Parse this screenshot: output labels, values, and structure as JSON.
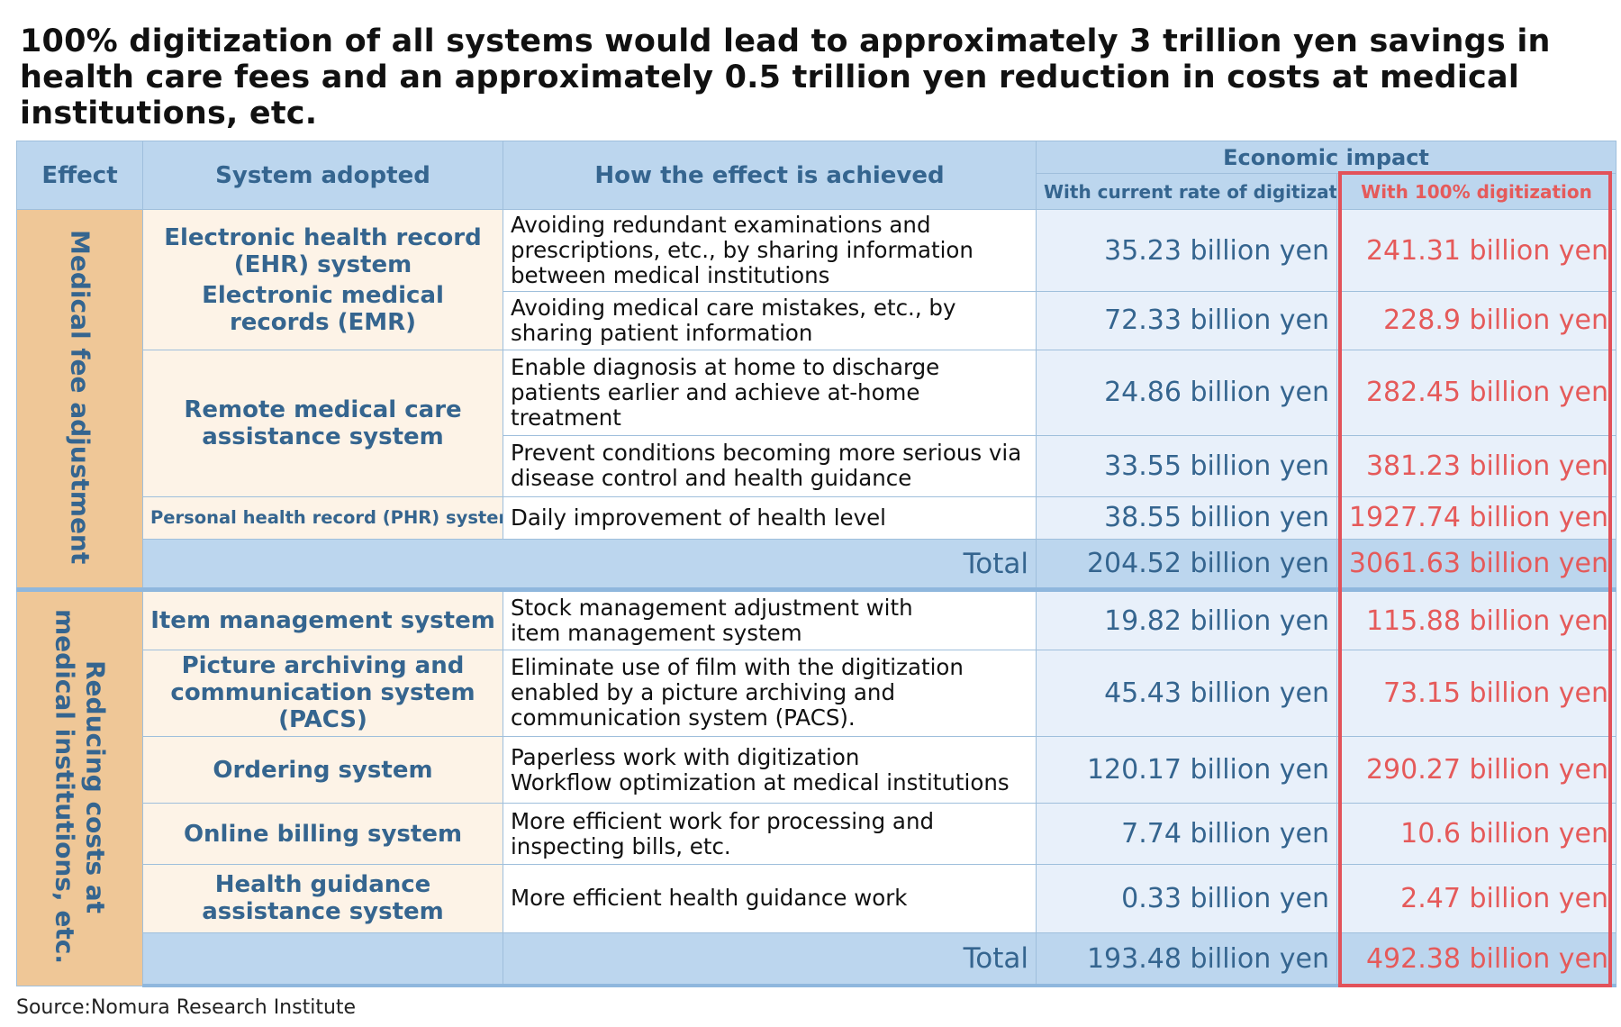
{
  "title": "100% digitization of all systems would lead to approximately 3 trillion yen savings in health care fees and an approximately 0.5 trillion yen reduction in costs at medical institutions, etc.",
  "header": {
    "effect": "Effect",
    "system": "System adopted",
    "how": "How the effect is achieved",
    "impact": "Economic impact",
    "current": "With current rate of digitization",
    "full": "With 100% digitization"
  },
  "highlight_color": "#e2525a",
  "sections": [
    {
      "effect": "Medical fee adjustment",
      "rows": [
        {
          "system_lines": [
            "Electronic health record (EHR) system",
            "Electronic medical records (EMR)"
          ],
          "how": "Avoiding redundant examinations and\nprescriptions, etc., by sharing information\nbetween medical institutions",
          "current": "35.23 billion yen",
          "full": "241.31 billion yen"
        },
        {
          "how": "Avoiding medical care mistakes, etc., by\nsharing patient information",
          "current": "72.33 billion yen",
          "full": "228.9 billion yen"
        },
        {
          "system_lines": [
            "Remote medical care assistance system"
          ],
          "how": "Enable diagnosis at home to discharge\npatients earlier and achieve at-home\ntreatment",
          "current": "24.86 billion yen",
          "full": "282.45 billion yen"
        },
        {
          "how": "Prevent conditions becoming more serious via\ndisease control and health guidance",
          "current": "33.55 billion yen",
          "full": "381.23 billion yen"
        },
        {
          "system_lines": [
            "Personal health record (PHR) system"
          ],
          "how": "Daily improvement of health level",
          "current": "38.55 billion yen",
          "full": "1927.74 billion yen"
        }
      ],
      "total_label": "Total",
      "total_current": "204.52 billion yen",
      "total_full": "3061.63 billion yen"
    },
    {
      "effect": "Reducing costs at\nmedical institutions, etc.",
      "rows": [
        {
          "system_lines": [
            "Item management system"
          ],
          "how": "Stock management adjustment with\nitem management system",
          "current": "19.82 billion yen",
          "full": "115.88 billion yen"
        },
        {
          "system_lines": [
            "Picture archiving and communication system (PACS)"
          ],
          "how": "Eliminate use of film with the digitization\nenabled by a picture archiving and\ncommunication system (PACS).",
          "current": "45.43 billion yen",
          "full": "73.15 billion yen"
        },
        {
          "system_lines": [
            "Ordering system"
          ],
          "how": "Paperless work with digitization\nWorkflow optimization at medical institutions",
          "current": "120.17 billion yen",
          "full": "290.27 billion yen"
        },
        {
          "system_lines": [
            "Online billing system"
          ],
          "how": "More efficient work for processing and\ninspecting bills, etc.",
          "current": "7.74 billion yen",
          "full": "10.6 billion yen"
        },
        {
          "system_lines": [
            "Health guidance assistance system"
          ],
          "how": "More efficient health guidance work",
          "current": "0.33 billion yen",
          "full": "2.47 billion yen"
        }
      ],
      "total_label": "Total",
      "total_current": "193.48 billion yen",
      "total_full": "492.38 billion yen"
    }
  ],
  "source": "Source:Nomura Research Institute"
}
